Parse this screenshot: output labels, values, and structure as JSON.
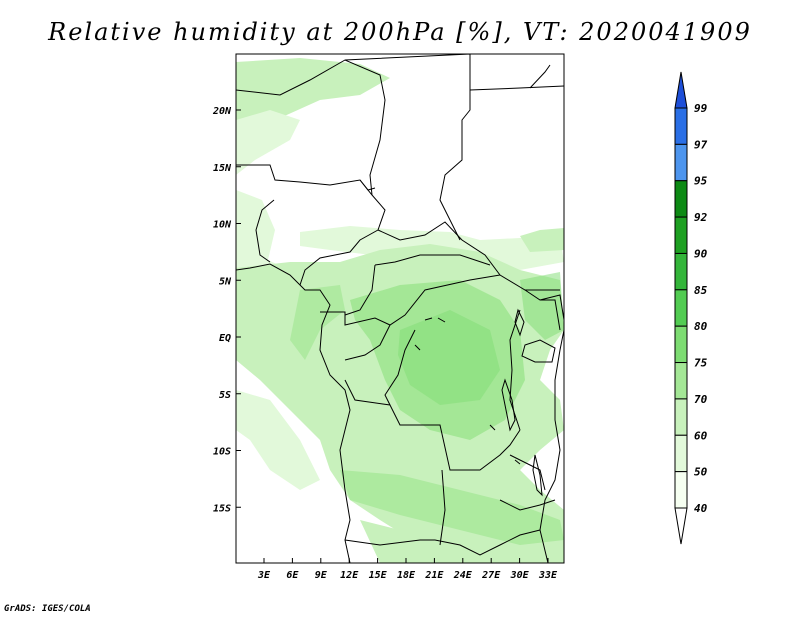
{
  "title": "Relative humidity at 200hPa [%], VT: 2020041909",
  "credit": "GrADS: IGES/COLA",
  "map": {
    "lat_labels": [
      "20N",
      "15N",
      "10N",
      "5N",
      "EQ",
      "5S",
      "10S",
      "15S"
    ],
    "lon_labels": [
      "3E",
      "6E",
      "9E",
      "12E",
      "15E",
      "18E",
      "21E",
      "24E",
      "27E",
      "30E",
      "33E"
    ]
  },
  "colorbar": {
    "labels": [
      "99",
      "97",
      "95",
      "92",
      "90",
      "85",
      "80",
      "75",
      "70",
      "60",
      "50",
      "40"
    ],
    "colors": [
      "#1e4fd8",
      "#2a6fe6",
      "#4d95ee",
      "#0d8a14",
      "#1ea022",
      "#34b53a",
      "#52cc52",
      "#7ddc72",
      "#a4e796",
      "#c8f1bc",
      "#e2f9da",
      "#f6fff1"
    ]
  },
  "colors": {
    "land_line": "#000000",
    "frame": "#000000"
  }
}
